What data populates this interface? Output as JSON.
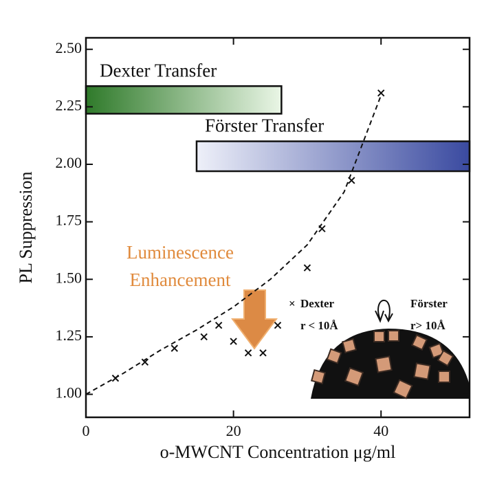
{
  "chart_data": {
    "type": "scatter",
    "x_label": "o-MWCNT Concentration μg/ml",
    "y_label": "PL Suppression",
    "xlim": [
      0,
      52
    ],
    "ylim": [
      0.9,
      2.55
    ],
    "xticks": [
      0,
      20,
      40
    ],
    "yticks": [
      {
        "value": 1,
        "label": "1.00"
      },
      {
        "value": 1.25,
        "label": "1.25"
      },
      {
        "value": 1.5,
        "label": "1.50"
      },
      {
        "value": 1.75,
        "label": "1.75"
      },
      {
        "value": 2,
        "label": "2.00"
      },
      {
        "value": 2.25,
        "label": "2.25"
      },
      {
        "value": 2.5,
        "label": "2.50"
      }
    ],
    "series": [
      {
        "color": "#111111",
        "marker": "x",
        "x": [
          4,
          8,
          12,
          16,
          18,
          20,
          22,
          24,
          26,
          30,
          32,
          36,
          40
        ],
        "values": [
          1.07,
          1.14,
          1.2,
          1.25,
          1.3,
          1.23,
          1.18,
          1.18,
          1.3,
          1.55,
          1.72,
          1.93,
          2.31
        ]
      },
      {
        "color": "#111111",
        "style": "dashed",
        "x": [
          0,
          5,
          10,
          15,
          20,
          25,
          30,
          35,
          40
        ],
        "values": [
          1.0,
          1.09,
          1.19,
          1.28,
          1.38,
          1.5,
          1.65,
          1.88,
          2.3
        ]
      }
    ],
    "bands": [
      {
        "label": "Dexter Transfer",
        "xlim": [
          0,
          26.5
        ],
        "ylim": [
          2.22,
          2.34
        ],
        "colors": [
          "#2f7a2a",
          "#eaf6e6"
        ]
      },
      {
        "label": "Förster Transfer",
        "xlim": [
          15,
          52
        ],
        "ylim": [
          1.97,
          2.1
        ],
        "colors": [
          "#eef0f9",
          "#3a4aa0"
        ]
      }
    ],
    "annotation": [
      "Luminescence",
      "Enhancement"
    ],
    "inset": {
      "dexter": "Dexter",
      "dexter_r": "r < 10Å",
      "forster": "Förster",
      "forster_r": "r> 10Å"
    }
  }
}
